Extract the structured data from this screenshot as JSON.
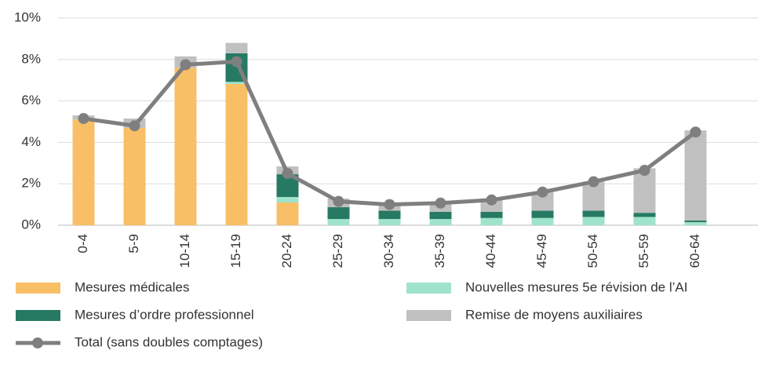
{
  "chart_data": {
    "type": "bar",
    "stacked": true,
    "categories": [
      "0-4",
      "5-9",
      "10-14",
      "15-19",
      "20-24",
      "25-29",
      "30-34",
      "35-39",
      "40-44",
      "45-49",
      "50-54",
      "55-59",
      "60-64"
    ],
    "series": [
      {
        "name": "Mesures médicales",
        "color": "#f9bf66",
        "values": [
          5.1,
          4.7,
          7.6,
          6.82,
          1.1,
          0,
          0,
          0,
          0,
          0,
          0,
          0,
          0
        ]
      },
      {
        "name": "Nouvelles mesures 5e révision de l’AI",
        "color": "#9fe3cc",
        "values": [
          0,
          0,
          0,
          0.1,
          0.26,
          0.3,
          0.3,
          0.3,
          0.35,
          0.35,
          0.4,
          0.4,
          0.15
        ]
      },
      {
        "name": "Mesures d’ordre professionnel",
        "color": "#267a64",
        "values": [
          0,
          0,
          0,
          1.38,
          1.1,
          0.57,
          0.4,
          0.35,
          0.3,
          0.35,
          0.3,
          0.2,
          0.08
        ]
      },
      {
        "name": "Remise de moyens auxiliaires",
        "color": "#c0c0c0",
        "values": [
          0.2,
          0.45,
          0.55,
          0.5,
          0.38,
          0.42,
          0.3,
          0.4,
          0.6,
          0.9,
          1.4,
          2.15,
          4.35
        ]
      },
      {
        "name": "Total (sans doubles comptages)",
        "type": "line",
        "color": "#7f7f7f",
        "values": [
          5.15,
          4.8,
          7.75,
          7.9,
          2.5,
          1.15,
          1.0,
          1.07,
          1.22,
          1.6,
          2.1,
          2.65,
          4.5
        ]
      }
    ],
    "ylim": [
      0,
      10
    ],
    "yticks": [
      {
        "value": 0,
        "label": "0%"
      },
      {
        "value": 2,
        "label": "2%"
      },
      {
        "value": 4,
        "label": "4%"
      },
      {
        "value": 6,
        "label": "6%"
      },
      {
        "value": 8,
        "label": "8%"
      },
      {
        "value": 10,
        "label": "10%"
      }
    ],
    "grid": true,
    "legend": "bottom"
  }
}
